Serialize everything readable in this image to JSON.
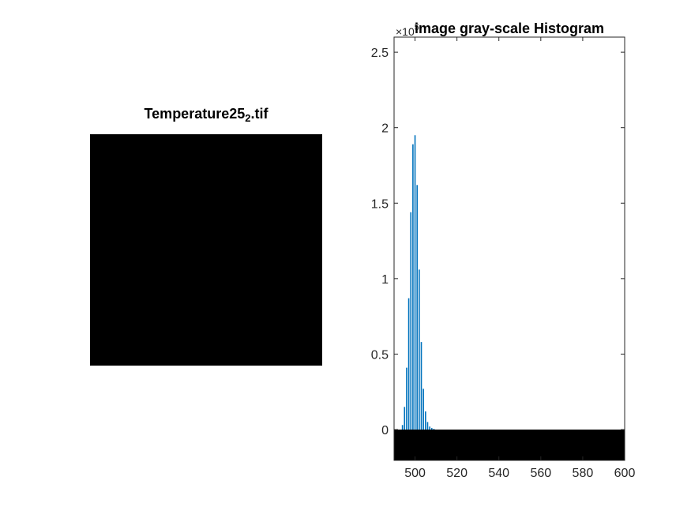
{
  "image_panel": {
    "title_main": "Temperature25",
    "title_sub": "2",
    "title_tail": ".tif"
  },
  "colors": {
    "bar": "#0072BD",
    "axis": "#262626",
    "image": "#000000",
    "colorbar": "#000000"
  },
  "chart_data": {
    "type": "bar",
    "title": "image gray-scale Histogram",
    "xlabel": "",
    "ylabel": "",
    "xlim": [
      490,
      600
    ],
    "ylim": [
      0,
      2.6
    ],
    "y_exponent": "5",
    "y_exponent_prefix": "×10",
    "xticks": [
      500,
      520,
      540,
      560,
      580,
      600
    ],
    "yticks": [
      0,
      0.5,
      1,
      1.5,
      2,
      2.5
    ],
    "ytick_labels": [
      "0",
      "0.5",
      "1",
      "1.5",
      "2",
      "2.5"
    ],
    "grid": false,
    "x": [
      494,
      495,
      496,
      497,
      498,
      499,
      500,
      501,
      502,
      503,
      504,
      505,
      506,
      507,
      508,
      509
    ],
    "values": [
      0.03,
      0.15,
      0.41,
      0.87,
      1.44,
      1.89,
      1.95,
      1.62,
      1.06,
      0.58,
      0.27,
      0.12,
      0.05,
      0.02,
      0.01,
      0.005
    ]
  }
}
